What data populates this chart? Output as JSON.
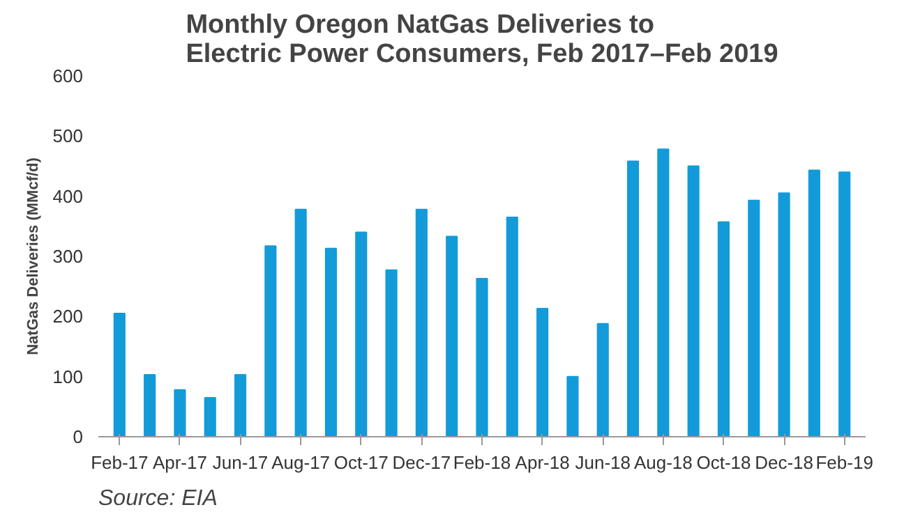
{
  "chart_data": {
    "type": "bar",
    "title": "Monthly Oregon NatGas Deliveries to\nElectric Power Consumers, Feb 2017–Feb 2019",
    "ylabel": "NatGas Deliveries (MMcf/d)",
    "categories": [
      "Feb-17",
      null,
      "Apr-17",
      null,
      "Jun-17",
      null,
      "Aug-17",
      null,
      "Oct-17",
      null,
      "Dec-17",
      null,
      "Feb-18",
      null,
      "Apr-18",
      null,
      "Jun-18",
      null,
      "Aug-18",
      null,
      "Oct-18",
      null,
      "Dec-18",
      null,
      "Feb-19"
    ],
    "values": [
      205,
      103,
      78,
      65,
      103,
      317,
      378,
      313,
      340,
      277,
      378,
      333,
      263,
      365,
      213,
      100,
      188,
      458,
      478,
      450,
      357,
      393,
      405,
      443,
      440
    ],
    "color": "#139bd9",
    "ylim": [
      0,
      600
    ],
    "yticks": [
      0,
      100,
      200,
      300,
      400,
      500,
      600
    ],
    "grid": false,
    "annotations": [
      "Source: EIA"
    ]
  }
}
